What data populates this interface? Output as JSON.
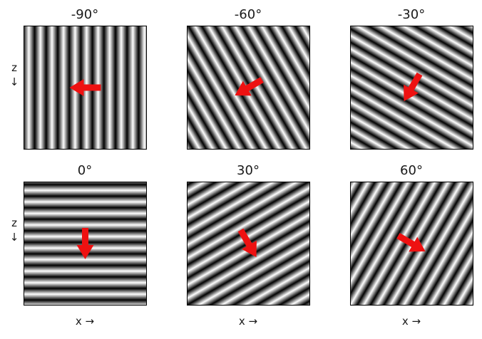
{
  "panels": [
    {
      "title": "-90°",
      "angle_deg": -90
    },
    {
      "title": "-60°",
      "angle_deg": -60
    },
    {
      "title": "-30°",
      "angle_deg": -30
    },
    {
      "title": "0°",
      "angle_deg": 0
    },
    {
      "title": "30°",
      "angle_deg": 30
    },
    {
      "title": "60°",
      "angle_deg": 60
    }
  ],
  "axis_labels": {
    "vertical": "z",
    "vertical_arrow": "↓",
    "horizontal": "x →"
  },
  "colors": {
    "arrow": "#ee1111",
    "stripe_dark": "#000000",
    "stripe_light": "#ffffff",
    "frame": "#000000"
  }
}
